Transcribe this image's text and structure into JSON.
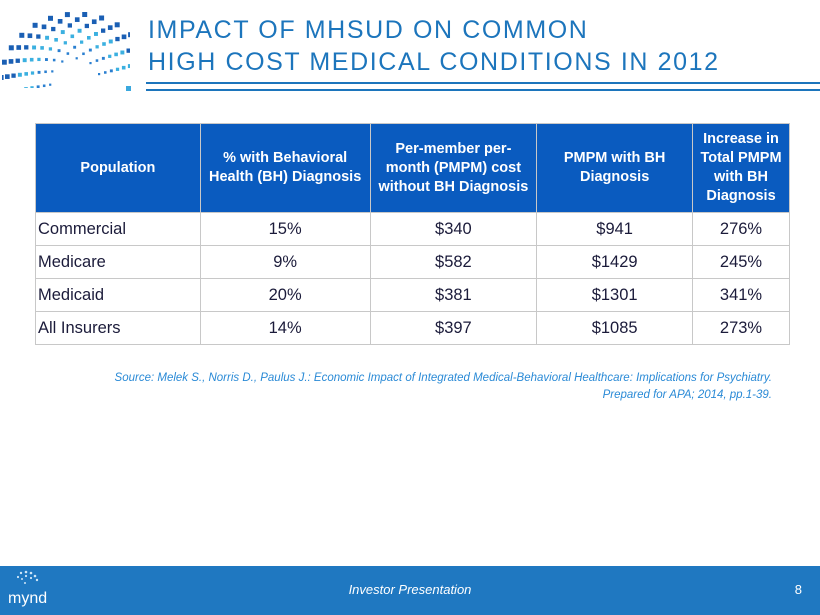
{
  "title": {
    "line1": "IMPACT OF MHSUD ON COMMON",
    "line2": "HIGH COST MEDICAL CONDITIONS IN 2012"
  },
  "table": {
    "headers": [
      "Population",
      "% with Behavioral Health (BH) Diagnosis",
      "Per-member per-month (PMPM) cost without BH Diagnosis",
      "PMPM with BH Diagnosis",
      "Increase in Total PMPM with BH Diagnosis"
    ],
    "rows": [
      [
        "Commercial",
        "15%",
        "$340",
        "$941",
        "276%"
      ],
      [
        "Medicare",
        "9%",
        "$582",
        "$1429",
        "245%"
      ],
      [
        "Medicaid",
        "20%",
        "$381",
        "$1301",
        "341%"
      ],
      [
        "All Insurers",
        "14%",
        "$397",
        "$1085",
        "273%"
      ]
    ]
  },
  "source": {
    "line1": "Source: Melek S., Norris D., Paulus J.: Economic Impact of Integrated Medical-Behavioral Healthcare: Implications for Psychiatry.",
    "line2": "Prepared for APA; 2014, pp.1-39."
  },
  "footer": {
    "brand": "mynd",
    "label": "Investor Presentation",
    "page": "8"
  },
  "colors": {
    "accent": "#1c75bc",
    "header_bg": "#0a5bbf",
    "footer_bg": "#1f78c1"
  }
}
